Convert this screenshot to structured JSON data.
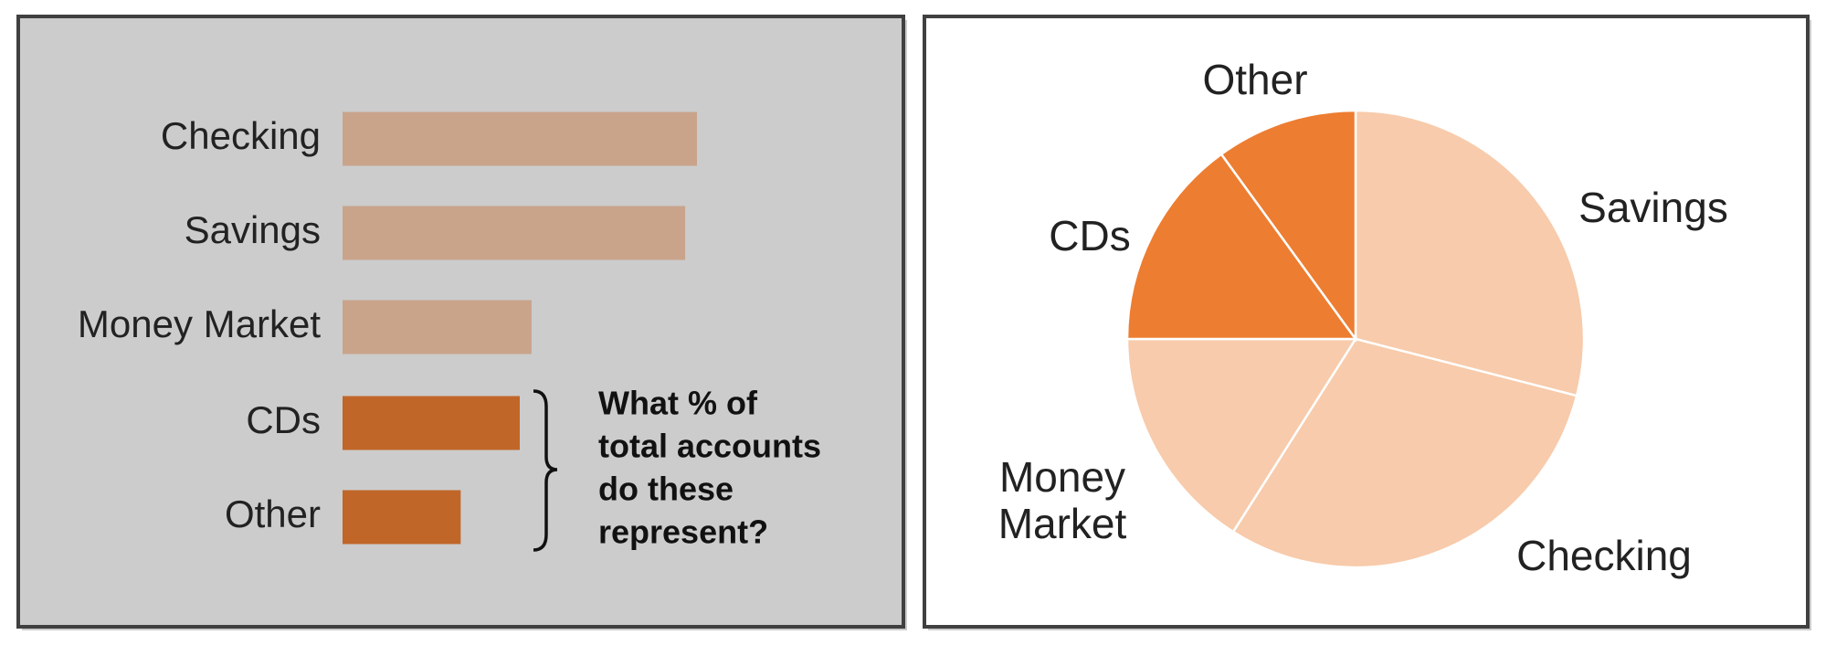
{
  "chart_data": [
    {
      "type": "bar",
      "categories": [
        "Checking",
        "Savings",
        "Money Market",
        "CDs",
        "Other"
      ],
      "values": [
        30,
        29,
        16,
        15,
        10
      ],
      "colors": [
        "#c9a48b",
        "#c9a48b",
        "#c9a48b",
        "#c06628",
        "#c06628"
      ],
      "annotation": [
        "What % of",
        "total accounts",
        "do these",
        "represent?"
      ]
    },
    {
      "type": "pie",
      "categories": [
        "Savings",
        "Checking",
        "Money Market",
        "CDs",
        "Other"
      ],
      "values": [
        29,
        30,
        16,
        15,
        10
      ],
      "colors": [
        "#f7cbab",
        "#f7cbab",
        "#f7cbab",
        "#ed7d31",
        "#ed7d31"
      ]
    }
  ]
}
